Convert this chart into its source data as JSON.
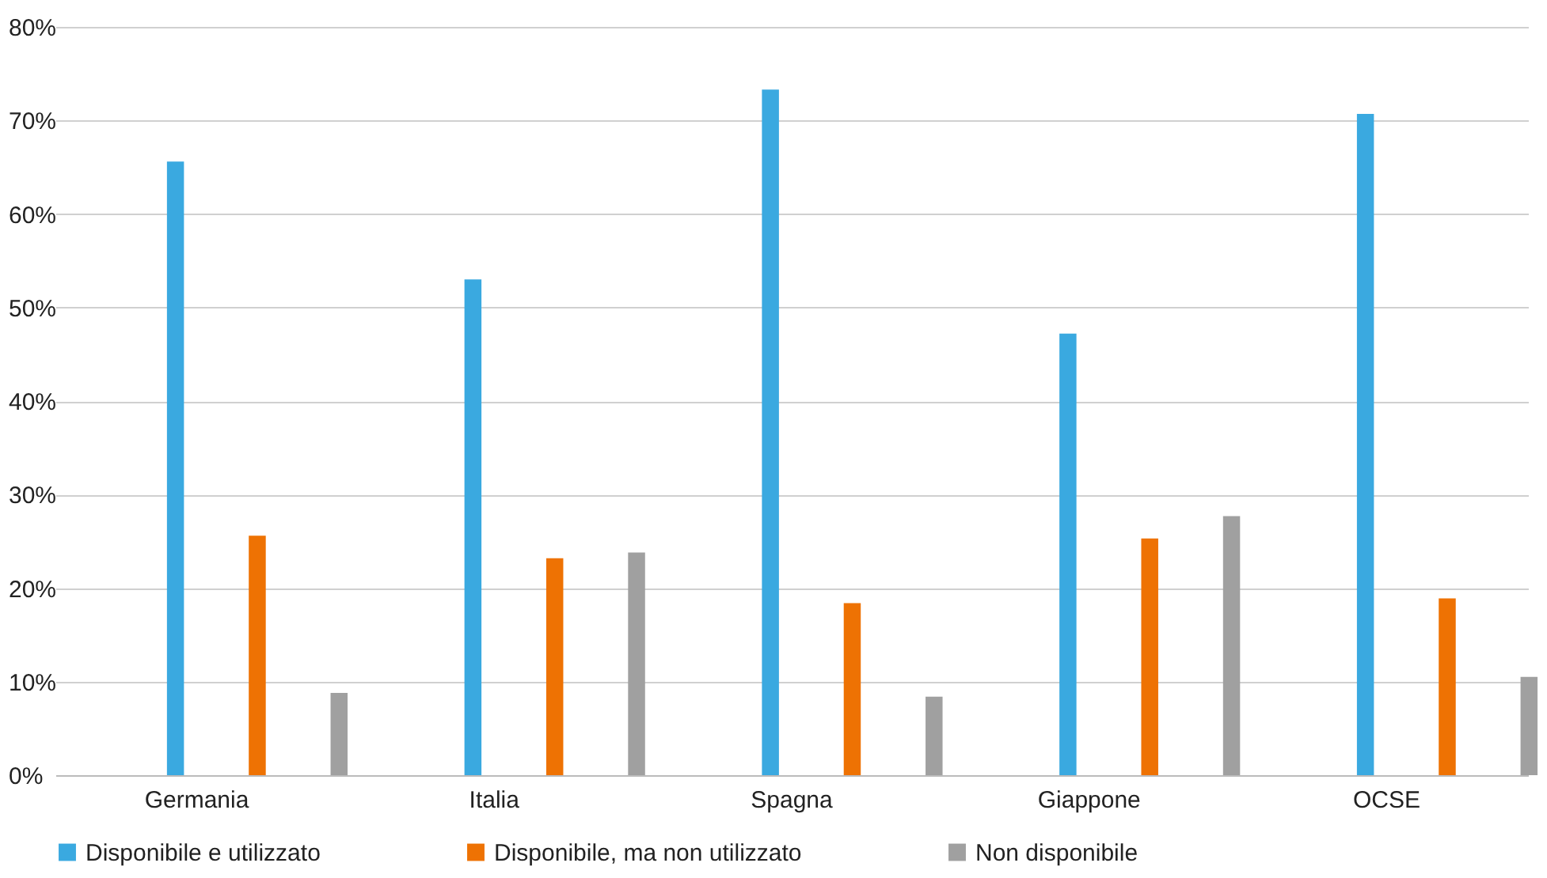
{
  "chart_data": {
    "type": "bar",
    "categories": [
      "Germania",
      "Italia",
      "Spagna",
      "Giappone",
      "OCSE"
    ],
    "series": [
      {
        "name": "Disponibile e utilizzato",
        "color": "#3aa9e0",
        "values": [
          65.6,
          53.0,
          73.3,
          47.2,
          70.7
        ]
      },
      {
        "name": "Disponibile, ma non utilizzato",
        "color": "#ee7203",
        "values": [
          25.6,
          23.2,
          18.4,
          25.3,
          18.9
        ]
      },
      {
        "name": "Non disponibile",
        "color": "#a0a0a0",
        "values": [
          8.8,
          23.8,
          8.4,
          27.7,
          10.5
        ]
      }
    ],
    "ylim": [
      0,
      80
    ],
    "yticks": [
      {
        "value": 0,
        "label": "0%"
      },
      {
        "value": 10,
        "label": "10%"
      },
      {
        "value": 20,
        "label": "20%"
      },
      {
        "value": 30,
        "label": "30%"
      },
      {
        "value": 40,
        "label": "40%"
      },
      {
        "value": 50,
        "label": "50%"
      },
      {
        "value": 60,
        "label": "60%"
      },
      {
        "value": 70,
        "label": "70%"
      },
      {
        "value": 80,
        "label": "80%"
      }
    ],
    "grid": "y",
    "legend": "bottom"
  }
}
